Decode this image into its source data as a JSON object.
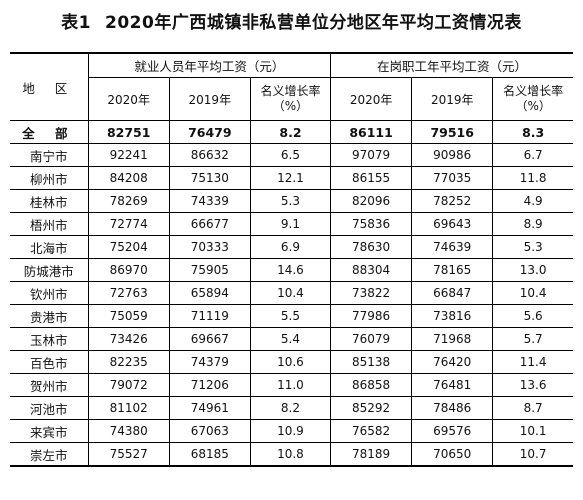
{
  "title": {
    "label": "表1",
    "text": "2020年广西城镇非私营单位分地区年平均工资情况表"
  },
  "table": {
    "region_header": "地 区",
    "group_headers": [
      "就业人员年平均工资（元）",
      "在岗职工年平均工资（元）"
    ],
    "sub_headers": [
      {
        "year_a": "2020年",
        "year_b": "2019年",
        "rate_line1": "名义增长率",
        "rate_line2": "（%）"
      },
      {
        "year_a": "2020年",
        "year_b": "2019年",
        "rate_line1": "名义增长率",
        "rate_line2": "（%）"
      }
    ],
    "rows": [
      [
        "全 部",
        "82751",
        "76479",
        "8.2",
        "86111",
        "79516",
        "8.3"
      ],
      [
        "南宁市",
        "92241",
        "86632",
        "6.5",
        "97079",
        "90986",
        "6.7"
      ],
      [
        "柳州市",
        "84208",
        "75130",
        "12.1",
        "86155",
        "77035",
        "11.8"
      ],
      [
        "桂林市",
        "78269",
        "74339",
        "5.3",
        "82096",
        "78252",
        "4.9"
      ],
      [
        "梧州市",
        "72774",
        "66677",
        "9.1",
        "75836",
        "69643",
        "8.9"
      ],
      [
        "北海市",
        "75204",
        "70333",
        "6.9",
        "78630",
        "74639",
        "5.3"
      ],
      [
        "防城港市",
        "86970",
        "75905",
        "14.6",
        "88304",
        "78165",
        "13.0"
      ],
      [
        "钦州市",
        "72763",
        "65894",
        "10.4",
        "73822",
        "66847",
        "10.4"
      ],
      [
        "贵港市",
        "75059",
        "71119",
        "5.5",
        "77986",
        "73816",
        "5.6"
      ],
      [
        "玉林市",
        "73426",
        "69667",
        "5.4",
        "76079",
        "71968",
        "5.7"
      ],
      [
        "百色市",
        "82235",
        "74379",
        "10.6",
        "85138",
        "76420",
        "11.4"
      ],
      [
        "贺州市",
        "79072",
        "71206",
        "11.0",
        "86858",
        "76481",
        "13.6"
      ],
      [
        "河池市",
        "81102",
        "74961",
        "8.2",
        "85292",
        "78486",
        "8.7"
      ],
      [
        "来宾市",
        "74380",
        "67063",
        "10.9",
        "76582",
        "69576",
        "10.1"
      ],
      [
        "崇左市",
        "75527",
        "68185",
        "10.8",
        "78189",
        "70650",
        "10.7"
      ]
    ]
  }
}
